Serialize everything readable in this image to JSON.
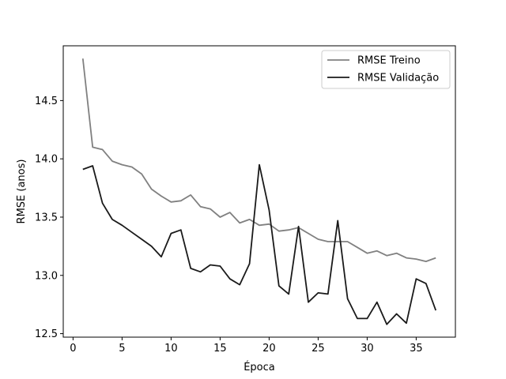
{
  "chart_data": {
    "type": "line",
    "xlabel": "Época",
    "ylabel": "RMSE (anos)",
    "xlim": [
      -1,
      39
    ],
    "ylim": [
      12.47,
      14.97
    ],
    "xticks": [
      0,
      5,
      10,
      15,
      20,
      25,
      30,
      35
    ],
    "yticks": [
      12.5,
      13.0,
      13.5,
      14.0,
      14.5
    ],
    "ytick_labels": [
      "12.5",
      "13.0",
      "13.5",
      "14.0",
      "14.5"
    ],
    "legend_position": "top-right",
    "grid": false,
    "x": [
      1,
      2,
      3,
      4,
      5,
      6,
      7,
      8,
      9,
      10,
      11,
      12,
      13,
      14,
      15,
      16,
      17,
      18,
      19,
      20,
      21,
      22,
      23,
      24,
      25,
      26,
      27,
      28,
      29,
      30,
      31,
      32,
      33,
      34,
      35,
      36,
      37
    ],
    "series": [
      {
        "name": "RMSE Treino",
        "color": "#808080",
        "values": [
          14.86,
          14.1,
          14.08,
          13.98,
          13.95,
          13.93,
          13.87,
          13.74,
          13.68,
          13.63,
          13.64,
          13.69,
          13.59,
          13.57,
          13.5,
          13.54,
          13.45,
          13.48,
          13.43,
          13.44,
          13.38,
          13.39,
          13.41,
          13.36,
          13.31,
          13.29,
          13.29,
          13.29,
          13.24,
          13.19,
          13.21,
          13.17,
          13.19,
          13.15,
          13.14,
          13.12,
          13.15
        ]
      },
      {
        "name": "RMSE Validação",
        "color": "#1a1a1a",
        "values": [
          13.91,
          13.94,
          13.62,
          13.48,
          13.43,
          13.37,
          13.31,
          13.25,
          13.16,
          13.36,
          13.39,
          13.06,
          13.03,
          13.09,
          13.08,
          12.97,
          12.92,
          13.1,
          13.95,
          13.56,
          12.91,
          12.84,
          13.42,
          12.77,
          12.85,
          12.84,
          13.47,
          12.8,
          12.63,
          12.63,
          12.77,
          12.58,
          12.67,
          12.59,
          12.97,
          12.93,
          12.7
        ]
      }
    ]
  }
}
